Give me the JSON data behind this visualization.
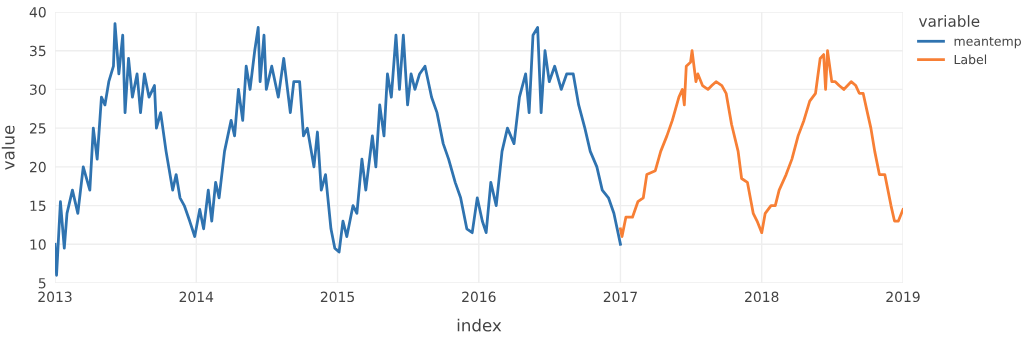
{
  "chart_data": {
    "type": "line",
    "xlabel": "index",
    "ylabel": "value",
    "legend_title": "variable",
    "xlim": [
      "2013-01-01",
      "2019-01-01"
    ],
    "xticks": [
      {
        "value": "2013-01-01",
        "label": "2013"
      },
      {
        "value": "2014-01-01",
        "label": "2014"
      },
      {
        "value": "2015-01-01",
        "label": "2015"
      },
      {
        "value": "2016-01-01",
        "label": "2016"
      },
      {
        "value": "2017-01-01",
        "label": "2017"
      },
      {
        "value": "2018-01-01",
        "label": "2018"
      },
      {
        "value": "2019-01-01",
        "label": "2019"
      }
    ],
    "ylim": [
      5,
      40
    ],
    "yticks": [
      5,
      10,
      15,
      20,
      25,
      30,
      35,
      40
    ],
    "grid": true,
    "legend": "top right",
    "marker": "none",
    "line_style": "solid",
    "series": [
      {
        "name": "meantemp",
        "color": "#2f73b0",
        "x": [
          "2013-01-01",
          "2013-01-05",
          "2013-01-15",
          "2013-01-25",
          "2013-02-01",
          "2013-02-15",
          "2013-03-01",
          "2013-03-15",
          "2013-04-01",
          "2013-04-10",
          "2013-04-20",
          "2013-05-01",
          "2013-05-10",
          "2013-05-20",
          "2013-06-01",
          "2013-06-05",
          "2013-06-15",
          "2013-06-25",
          "2013-07-01",
          "2013-07-10",
          "2013-07-20",
          "2013-08-01",
          "2013-08-10",
          "2013-08-20",
          "2013-09-01",
          "2013-09-15",
          "2013-09-20",
          "2013-10-01",
          "2013-10-15",
          "2013-11-01",
          "2013-11-10",
          "2013-11-20",
          "2013-12-01",
          "2013-12-15",
          "2013-12-28",
          "2014-01-10",
          "2014-01-20",
          "2014-02-01",
          "2014-02-10",
          "2014-02-20",
          "2014-03-01",
          "2014-03-15",
          "2014-04-01",
          "2014-04-10",
          "2014-04-20",
          "2014-05-01",
          "2014-05-10",
          "2014-05-20",
          "2014-06-01",
          "2014-06-10",
          "2014-06-15",
          "2014-06-25",
          "2014-07-01",
          "2014-07-15",
          "2014-08-01",
          "2014-08-15",
          "2014-09-01",
          "2014-09-10",
          "2014-09-25",
          "2014-10-05",
          "2014-10-15",
          "2014-11-01",
          "2014-11-10",
          "2014-11-20",
          "2014-12-01",
          "2014-12-15",
          "2014-12-25",
          "2015-01-05",
          "2015-01-15",
          "2015-01-25",
          "2015-02-10",
          "2015-02-20",
          "2015-03-05",
          "2015-03-15",
          "2015-04-01",
          "2015-04-10",
          "2015-04-20",
          "2015-05-01",
          "2015-05-10",
          "2015-05-20",
          "2015-06-01",
          "2015-06-10",
          "2015-06-20",
          "2015-07-01",
          "2015-07-10",
          "2015-07-20",
          "2015-08-01",
          "2015-08-15",
          "2015-09-01",
          "2015-09-15",
          "2015-10-01",
          "2015-10-15",
          "2015-11-01",
          "2015-11-15",
          "2015-12-01",
          "2015-12-15",
          "2015-12-28",
          "2016-01-10",
          "2016-01-20",
          "2016-02-01",
          "2016-02-15",
          "2016-03-01",
          "2016-03-15",
          "2016-04-01",
          "2016-04-15",
          "2016-05-01",
          "2016-05-10",
          "2016-05-20",
          "2016-06-01",
          "2016-06-10",
          "2016-06-20",
          "2016-07-01",
          "2016-07-15",
          "2016-08-01",
          "2016-08-15",
          "2016-09-01",
          "2016-09-15",
          "2016-10-01",
          "2016-10-15",
          "2016-11-01",
          "2016-11-15",
          "2016-12-01",
          "2016-12-15",
          "2017-01-01"
        ],
        "values": [
          10,
          6,
          15.5,
          9.5,
          14,
          17,
          14,
          20,
          17,
          25,
          21,
          29,
          28,
          31,
          33,
          38.5,
          32,
          37,
          27,
          34,
          29,
          32,
          27,
          32,
          29,
          30.5,
          25,
          27,
          22,
          17,
          19,
          16,
          15,
          13,
          11,
          14.5,
          12,
          17,
          13,
          18,
          16,
          22,
          26,
          24,
          30,
          26,
          33,
          30,
          35,
          38,
          31,
          37,
          30,
          33,
          29,
          34,
          27,
          31,
          31,
          24,
          25,
          20,
          24.5,
          17,
          19,
          12,
          9.5,
          9,
          13,
          11,
          15,
          14,
          21,
          17,
          24,
          20,
          28,
          24,
          32,
          29,
          37,
          30,
          37,
          28,
          32,
          30,
          32,
          33,
          29,
          27,
          23,
          21,
          18,
          16,
          12,
          11.5,
          16,
          13,
          11.5,
          18,
          15,
          22,
          25,
          23,
          29,
          32,
          27,
          37,
          38,
          27,
          35,
          31,
          33,
          30,
          32,
          32,
          28,
          25,
          22,
          20,
          17,
          16,
          14,
          10
        ]
      },
      {
        "name": "Label",
        "color": "#f77f35",
        "x": [
          "2017-01-01",
          "2017-01-05",
          "2017-01-15",
          "2017-02-01",
          "2017-02-15",
          "2017-03-01",
          "2017-03-10",
          "2017-04-01",
          "2017-04-15",
          "2017-05-01",
          "2017-05-15",
          "2017-06-01",
          "2017-06-10",
          "2017-06-15",
          "2017-06-20",
          "2017-07-01",
          "2017-07-05",
          "2017-07-15",
          "2017-07-20",
          "2017-08-01",
          "2017-08-15",
          "2017-08-25",
          "2017-09-05",
          "2017-09-20",
          "2017-10-01",
          "2017-10-15",
          "2017-11-01",
          "2017-11-10",
          "2017-11-25",
          "2017-12-10",
          "2017-12-20",
          "2018-01-01",
          "2018-01-10",
          "2018-01-25",
          "2018-02-05",
          "2018-02-15",
          "2018-03-05",
          "2018-03-20",
          "2018-04-05",
          "2018-04-20",
          "2018-05-05",
          "2018-05-20",
          "2018-06-01",
          "2018-06-10",
          "2018-06-15",
          "2018-06-20",
          "2018-07-01",
          "2018-07-10",
          "2018-07-20",
          "2018-08-01",
          "2018-08-20",
          "2018-09-01",
          "2018-09-10",
          "2018-09-20",
          "2018-10-01",
          "2018-10-10",
          "2018-10-20",
          "2018-11-01",
          "2018-11-15",
          "2018-12-01",
          "2018-12-10",
          "2018-12-20",
          "2019-01-01"
        ],
        "values": [
          12,
          11,
          13.5,
          13.5,
          15.5,
          16,
          19,
          19.5,
          22,
          24,
          26,
          29,
          30,
          28,
          33,
          33.5,
          35,
          31,
          32,
          30.5,
          30,
          30.5,
          31,
          30.5,
          29.5,
          25.5,
          22,
          18.5,
          18,
          14,
          13,
          11.5,
          14,
          15,
          15,
          17,
          19,
          21,
          24,
          26,
          28.5,
          29.5,
          34,
          34.5,
          30,
          35,
          31,
          31,
          30.5,
          30,
          31,
          30.5,
          29.5,
          29.5,
          27,
          25,
          22,
          19,
          19,
          15,
          13,
          13,
          14.5
        ]
      }
    ]
  }
}
